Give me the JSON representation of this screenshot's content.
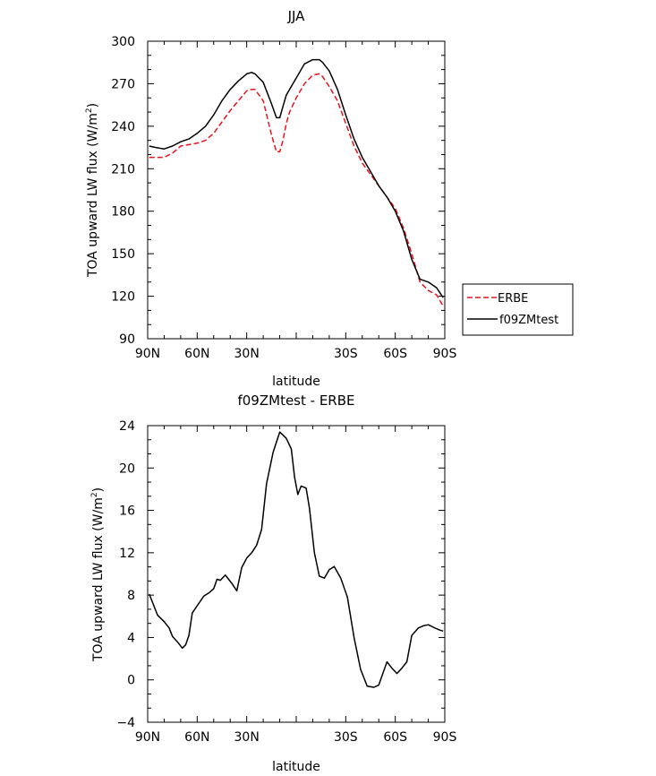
{
  "chart_data": [
    {
      "type": "line",
      "title": "JJA",
      "xlabel": "latitude",
      "ylabel": "TOA upward LW flux (W/m",
      "ylabel_sup": "2",
      "ylabel_end": ")",
      "xlim": [
        90,
        -90
      ],
      "ylim": [
        90,
        300
      ],
      "xticks": [
        90,
        60,
        30,
        0,
        -30,
        -60,
        -90
      ],
      "xtick_labels": [
        "90N",
        "60N",
        "30N",
        "",
        "30S",
        "60S",
        "90S"
      ],
      "yticks": [
        90,
        120,
        150,
        180,
        210,
        240,
        270,
        300
      ],
      "ytick_labels": [
        "90",
        "120",
        "150",
        "180",
        "210",
        "240",
        "270",
        "300"
      ],
      "legend_position": "outside-right",
      "series": [
        {
          "name": "ERBE",
          "color": "#e8141e",
          "dash": "dashed",
          "x": [
            89,
            85,
            80,
            75,
            70,
            65,
            60,
            55,
            50,
            45,
            40,
            35,
            30,
            27,
            25,
            20,
            15,
            12,
            10,
            8,
            6,
            4,
            2,
            0,
            -5,
            -10,
            -14,
            -16,
            -20,
            -25,
            -30,
            -35,
            -40,
            -45,
            -50,
            -55,
            -60,
            -65,
            -70,
            -75,
            -80,
            -85,
            -89
          ],
          "y": [
            218,
            218,
            218,
            221,
            226,
            227,
            228,
            230,
            235,
            243,
            251,
            258,
            265,
            266,
            266,
            258,
            234,
            222,
            222,
            230,
            242,
            250,
            255,
            260,
            270,
            276,
            277,
            275,
            268,
            258,
            242,
            226,
            214,
            206,
            198,
            190,
            182,
            168,
            150,
            130,
            124,
            121,
            113
          ]
        },
        {
          "name": "f09ZMtest",
          "color": "#000000",
          "dash": "solid",
          "x": [
            89,
            85,
            80,
            75,
            70,
            65,
            60,
            55,
            50,
            45,
            40,
            35,
            30,
            27,
            25,
            20,
            15,
            12,
            10,
            8,
            6,
            4,
            2,
            0,
            -5,
            -10,
            -14,
            -16,
            -20,
            -25,
            -30,
            -35,
            -40,
            -45,
            -50,
            -55,
            -60,
            -65,
            -70,
            -75,
            -80,
            -85,
            -89
          ],
          "y": [
            226,
            225,
            224,
            226,
            229,
            231,
            235,
            240,
            248,
            258,
            266,
            272,
            277,
            278,
            277,
            271,
            256,
            246,
            246,
            254,
            262,
            266,
            270,
            274,
            284,
            287,
            287,
            285,
            279,
            266,
            248,
            231,
            218,
            208,
            198,
            190,
            180,
            166,
            146,
            132,
            130,
            126,
            119
          ]
        }
      ]
    },
    {
      "type": "line",
      "title": "f09ZMtest - ERBE",
      "xlabel": "latitude",
      "ylabel": "TOA upward LW flux (W/m",
      "ylabel_sup": "2",
      "ylabel_end": ")",
      "xlim": [
        90,
        -90
      ],
      "ylim": [
        -4,
        24
      ],
      "xticks": [
        90,
        60,
        30,
        0,
        -30,
        -60,
        -90
      ],
      "xtick_labels": [
        "90N",
        "60N",
        "30N",
        "",
        "30S",
        "60S",
        "90S"
      ],
      "yticks": [
        -4,
        0,
        4,
        8,
        12,
        16,
        20,
        24
      ],
      "ytick_labels": [
        "−4",
        "0",
        "4",
        "8",
        "12",
        "16",
        "20",
        "24"
      ],
      "series": [
        {
          "color": "#000000",
          "dash": "solid",
          "x": [
            89,
            84,
            80,
            77,
            75,
            72,
            69,
            67,
            65,
            63,
            60,
            56,
            53,
            50,
            48,
            46,
            43,
            39,
            36,
            33,
            30,
            27,
            24,
            21,
            18,
            14,
            10,
            6,
            3,
            1,
            -1,
            -3,
            -6,
            -8,
            -11,
            -14,
            -17,
            -20,
            -23,
            -27,
            -31,
            -35,
            -39,
            -43,
            -47,
            -50,
            -52,
            -55,
            -58,
            -61,
            -64,
            -67,
            -70,
            -74,
            -77,
            -80,
            -84,
            -87,
            -89
          ],
          "y": [
            8.1,
            6.1,
            5.5,
            4.9,
            4.1,
            3.6,
            3.0,
            3.3,
            4.2,
            6.3,
            7.0,
            7.9,
            8.2,
            8.6,
            9.5,
            9.4,
            9.9,
            9.1,
            8.4,
            10.6,
            11.5,
            12.0,
            12.7,
            14.2,
            18.5,
            21.5,
            23.4,
            22.8,
            21.8,
            19.1,
            17.5,
            18.3,
            18.1,
            16.2,
            12.0,
            9.8,
            9.6,
            10.4,
            10.7,
            9.6,
            7.8,
            4.0,
            1.0,
            -0.6,
            -0.7,
            -0.5,
            0.4,
            1.7,
            1.1,
            0.6,
            1.1,
            1.7,
            4.2,
            4.9,
            5.1,
            5.2,
            4.9,
            4.7,
            4.6
          ]
        }
      ]
    }
  ]
}
